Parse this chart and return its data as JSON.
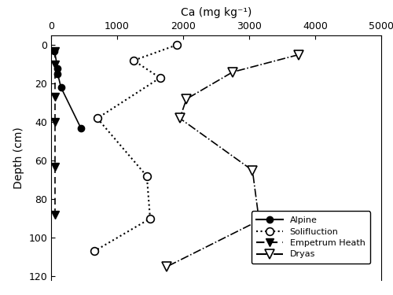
{
  "xlabel": "Ca (mg kg⁻¹)",
  "ylabel": "Depth (cm)",
  "xlim": [
    0,
    5000
  ],
  "ylim": [
    122,
    -5
  ],
  "xticks": [
    0,
    1000,
    2000,
    3000,
    4000,
    5000
  ],
  "yticks": [
    0,
    20,
    40,
    60,
    80,
    100,
    120
  ],
  "alpine": {
    "ca": [
      50,
      100,
      100,
      150,
      450
    ],
    "depth": [
      3,
      12,
      15,
      22,
      43
    ]
  },
  "solifluction": {
    "ca": [
      1900,
      1250,
      1650,
      700,
      1450,
      1500,
      650
    ],
    "depth": [
      0,
      8,
      17,
      38,
      68,
      90,
      107
    ]
  },
  "empetrum": {
    "ca": [
      60,
      60,
      60,
      60,
      60,
      60
    ],
    "depth": [
      3,
      10,
      27,
      40,
      63,
      88
    ]
  },
  "dryas": {
    "ca": [
      3750,
      2750,
      2050,
      1950,
      3050,
      3150,
      1750
    ],
    "depth": [
      5,
      14,
      28,
      38,
      65,
      91,
      115
    ]
  },
  "background_color": "white",
  "figsize": [
    5.0,
    3.75
  ],
  "dpi": 100
}
